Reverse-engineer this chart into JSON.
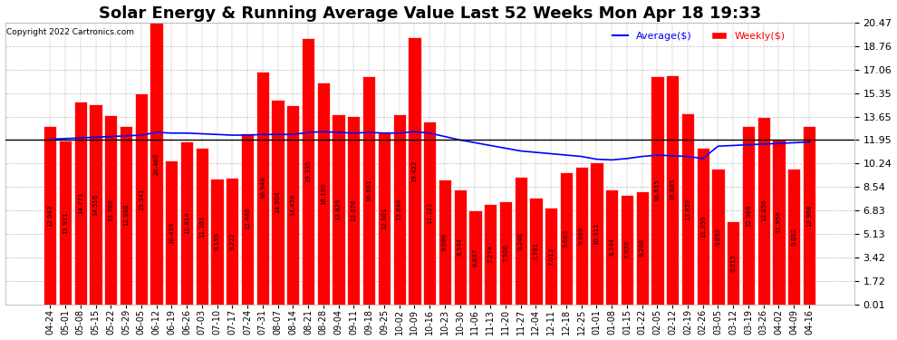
{
  "title": "Solar Energy & Running Average Value Last 52 Weeks Mon Apr 18 19:33",
  "copyright": "Copyright 2022 Cartronics.com",
  "legend_avg": "Average($)",
  "legend_weekly": "Weekly($)",
  "ylim": [
    0.01,
    20.47
  ],
  "yticks": [
    0.01,
    1.72,
    3.42,
    5.13,
    6.83,
    8.54,
    10.24,
    11.95,
    13.65,
    15.35,
    17.06,
    18.76,
    20.47
  ],
  "bar_color": "#ff0000",
  "bar_edge_color": "#ffffff",
  "avg_line_color": "#0000ff",
  "overall_avg_line_color": "#000000",
  "background_color": "#ffffff",
  "grid_color": "#bbbbbb",
  "categories": [
    "04-24",
    "05-01",
    "05-08",
    "05-15",
    "05-22",
    "05-29",
    "06-05",
    "06-12",
    "06-19",
    "06-26",
    "07-03",
    "07-10",
    "07-17",
    "07-24",
    "07-31",
    "08-07",
    "08-14",
    "08-21",
    "08-28",
    "09-04",
    "09-11",
    "09-18",
    "09-25",
    "10-02",
    "10-09",
    "10-16",
    "10-23",
    "10-30",
    "11-06",
    "11-13",
    "11-20",
    "11-27",
    "12-04",
    "12-11",
    "12-18",
    "12-25",
    "01-01",
    "01-08",
    "01-15",
    "01-22",
    "02-05",
    "02-12",
    "02-19",
    "02-26",
    "03-05",
    "03-12",
    "03-19",
    "03-26",
    "04-02",
    "04-09",
    "04-16"
  ],
  "weekly_values": [
    12.943,
    11.921,
    14.771,
    14.516,
    13.76,
    12.988,
    15.341,
    20.468,
    10.459,
    11.814,
    11.381,
    9.159,
    9.222,
    12.448,
    16.948,
    14.904,
    14.47,
    19.335,
    16.1,
    13.829,
    13.676,
    16.601,
    12.501,
    13.844,
    19.422,
    13.325,
    9.096,
    8.344,
    6.837,
    7.274,
    7.506,
    9.246,
    7.781,
    7.013,
    9.603,
    9.999,
    10.311,
    8.344,
    7.978,
    8.206,
    16.615,
    16.685,
    13.859,
    11.359,
    9.892,
    6.015,
    12.968,
    13.65,
    11.95,
    9.892,
    12.968
  ],
  "running_avg": [
    12.0,
    12.05,
    12.1,
    12.15,
    12.2,
    12.25,
    12.3,
    12.5,
    12.45,
    12.45,
    12.4,
    12.35,
    12.3,
    12.3,
    12.35,
    12.35,
    12.35,
    12.5,
    12.55,
    12.5,
    12.45,
    12.5,
    12.45,
    12.45,
    12.55,
    12.45,
    12.2,
    11.95,
    11.75,
    11.55,
    11.35,
    11.15,
    11.05,
    10.95,
    10.85,
    10.75,
    10.55,
    10.5,
    10.6,
    10.75,
    10.85,
    10.8,
    10.75,
    10.6,
    11.5,
    11.55,
    11.6,
    11.65,
    11.7,
    11.75,
    11.8
  ],
  "overall_avg": 12.0,
  "title_fontsize": 13,
  "ytick_fontsize": 8,
  "xtick_fontsize": 7
}
